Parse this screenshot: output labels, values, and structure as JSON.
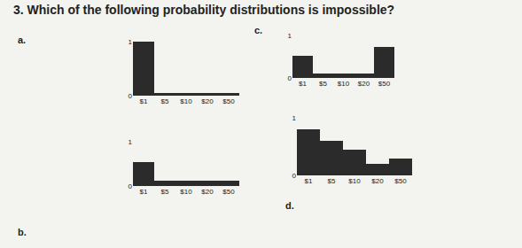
{
  "title": "3. Which of the following probability distributions is impossible?",
  "chart_data": [
    {
      "type": "bar",
      "title": "a.",
      "categories": [
        "$1",
        "$5",
        "$10",
        "$20",
        "$50"
      ],
      "values": [
        1,
        0.05,
        0.05,
        0.05,
        0.05
      ],
      "color": "#2b2b2b",
      "ylim": [
        0,
        1
      ],
      "yticks": [
        0,
        1
      ],
      "grid": false
    },
    {
      "type": "bar",
      "title": "b.",
      "categories": [
        "$1",
        "$5",
        "$10",
        "$20",
        "$50"
      ],
      "values": [
        0.55,
        0.12,
        0.12,
        0.12,
        0.12
      ],
      "color": "#2b2b2b",
      "ylim": [
        0,
        1
      ],
      "yticks": [
        0,
        1
      ],
      "grid": false
    },
    {
      "type": "bar",
      "title": "c.",
      "categories": [
        "$1",
        "$5",
        "$10",
        "$20",
        "$50"
      ],
      "values": [
        0.53,
        0.1,
        0.1,
        0.1,
        0.72
      ],
      "color": "#2b2b2b",
      "ylim": [
        0,
        1
      ],
      "yticks": [
        0,
        1
      ],
      "grid": false
    },
    {
      "type": "bar",
      "title": "d.",
      "categories": [
        "$1",
        "$5",
        "$10",
        "$20",
        "$50"
      ],
      "values": [
        0.8,
        0.6,
        0.45,
        0.2,
        0.3
      ],
      "color": "#2b2b2b",
      "ylim": [
        0,
        1
      ],
      "yticks": [
        0,
        1
      ],
      "grid": false
    }
  ]
}
